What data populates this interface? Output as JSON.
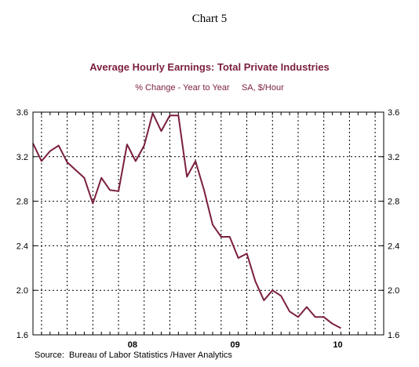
{
  "header": {
    "chart_number": "Chart 5",
    "title": "Average Hourly Earnings: Total Private Industries",
    "subtitle": "% Change - Year to Year     SA, $/Hour"
  },
  "footer": {
    "source": "Source:  Bureau of Labor Statistics /Haver Analytics"
  },
  "colors": {
    "series_line": "#7a1f3d",
    "title_text": "#7a1f3d"
  },
  "chart_data": {
    "type": "line",
    "title": "Average Hourly Earnings: Total Private Industries",
    "subtitle": "% Change - Year to Year     SA, $/Hour",
    "xlabel": "",
    "ylabel": "",
    "x_ticks": [
      {
        "month_index": 12,
        "label": "08"
      },
      {
        "month_index": 24,
        "label": "09"
      },
      {
        "month_index": 36,
        "label": "10"
      }
    ],
    "xlim": [
      0,
      41
    ],
    "ylim": [
      1.6,
      3.6
    ],
    "yticks": [
      1.6,
      2.0,
      2.4,
      2.8,
      3.2,
      3.6
    ],
    "ytick_labels": [
      "1.6",
      "2.0",
      "2.4",
      "2.8",
      "3.2",
      "3.6"
    ],
    "axis_labels_left_and_right": true,
    "grid": true,
    "grid_style": "dashed",
    "series": [
      {
        "name": "",
        "color": "#7a1f3d",
        "values": [
          3.32,
          3.16,
          3.25,
          3.3,
          3.15,
          3.08,
          3.01,
          2.78,
          3.01,
          2.9,
          2.89,
          3.31,
          3.16,
          3.3,
          3.59,
          3.43,
          3.57,
          3.57,
          3.02,
          3.16,
          2.9,
          2.59,
          2.48,
          2.48,
          2.29,
          2.33,
          2.08,
          1.91,
          2.0,
          1.95,
          1.81,
          1.76,
          1.85,
          1.76,
          1.76,
          1.7,
          1.66
        ]
      }
    ]
  }
}
